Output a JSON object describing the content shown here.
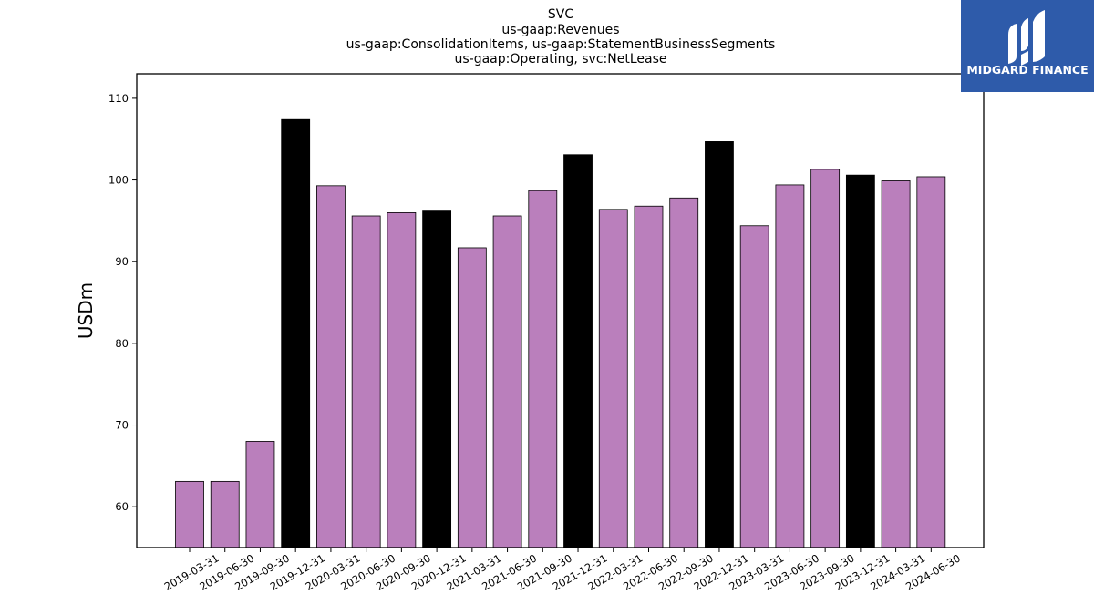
{
  "chart_data": {
    "type": "bar",
    "title_lines": [
      "SVC",
      "us-gaap:Revenues",
      "us-gaap:ConsolidationItems, us-gaap:StatementBusinessSegments",
      "us-gaap:Operating, svc:NetLease"
    ],
    "ylabel": "USDm",
    "xlabel": "",
    "ylim": [
      55,
      113
    ],
    "yticks": [
      60,
      70,
      80,
      90,
      100,
      110
    ],
    "categories": [
      "2019-03-31",
      "2019-06-30",
      "2019-09-30",
      "2019-12-31",
      "2020-03-31",
      "2020-06-30",
      "2020-09-30",
      "2020-12-31",
      "2021-03-31",
      "2021-06-30",
      "2021-09-30",
      "2021-12-31",
      "2022-03-31",
      "2022-06-30",
      "2022-09-30",
      "2022-12-31",
      "2023-03-31",
      "2023-06-30",
      "2023-09-30",
      "2023-12-31",
      "2024-03-31",
      "2024-06-30"
    ],
    "values": [
      63.1,
      63.1,
      68.0,
      107.4,
      99.3,
      95.6,
      96.0,
      96.2,
      91.7,
      95.6,
      98.7,
      103.1,
      96.4,
      96.8,
      97.8,
      104.7,
      94.4,
      99.4,
      101.3,
      100.6,
      99.9,
      100.4
    ],
    "bar_colors": [
      "#BA7FBC",
      "#BA7FBC",
      "#BA7FBC",
      "#000000",
      "#BA7FBC",
      "#BA7FBC",
      "#BA7FBC",
      "#000000",
      "#BA7FBC",
      "#BA7FBC",
      "#BA7FBC",
      "#000000",
      "#BA7FBC",
      "#BA7FBC",
      "#BA7FBC",
      "#000000",
      "#BA7FBC",
      "#BA7FBC",
      "#BA7FBC",
      "#000000",
      "#BA7FBC",
      "#BA7FBC"
    ],
    "grid": false,
    "legend": "none"
  },
  "logo": {
    "text": "MIDGARD FINANCE",
    "background": "#2E5BAA"
  }
}
